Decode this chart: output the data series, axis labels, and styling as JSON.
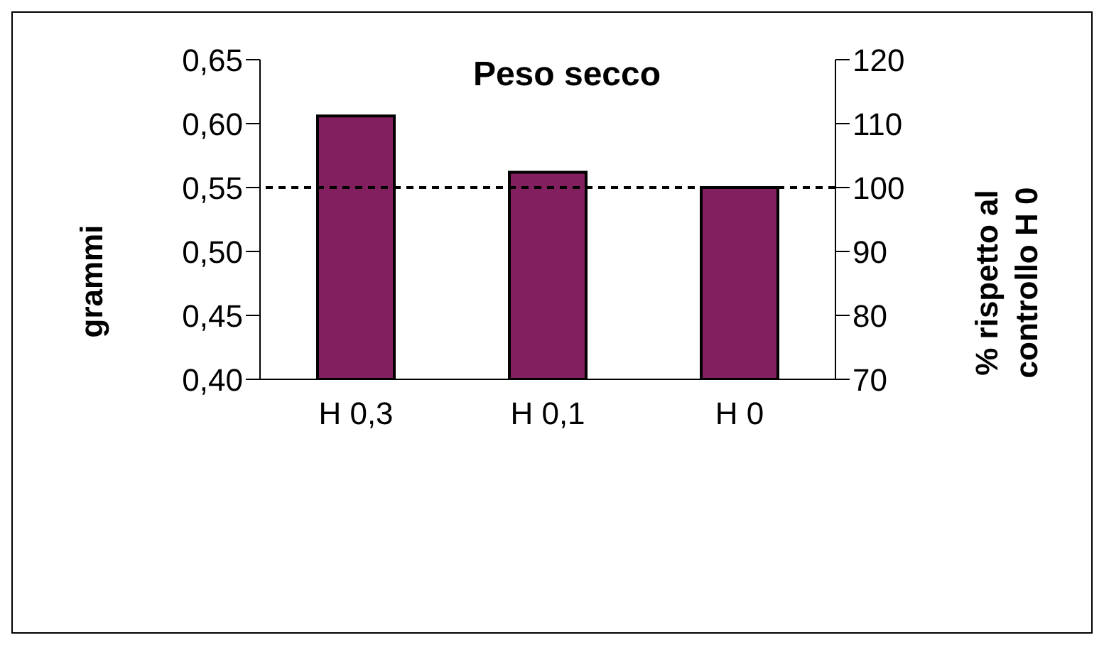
{
  "chart_data": {
    "type": "bar",
    "title": "Peso secco",
    "ylabel": "grammi",
    "y2label": "% rispetto al controllo H 0",
    "categories": [
      "H 0,3",
      "H 0,1",
      "H 0"
    ],
    "series": [
      {
        "color": "#821f5e",
        "values": [
          0.606,
          0.562,
          0.55
        ]
      }
    ],
    "ylim": [
      0.4,
      0.65
    ],
    "yticks": [
      {
        "value": 0.4,
        "label": "0,40"
      },
      {
        "value": 0.45,
        "label": "0,45"
      },
      {
        "value": 0.5,
        "label": "0,50"
      },
      {
        "value": 0.55,
        "label": "0,55"
      },
      {
        "value": 0.6,
        "label": "0,60"
      },
      {
        "value": 0.65,
        "label": "0,65"
      }
    ],
    "y2lim": [
      70,
      120
    ],
    "y2ticks": [
      70,
      80,
      90,
      100,
      110,
      120
    ],
    "ref_lines": [
      {
        "axis": "y2",
        "value": 100,
        "line_style": "dashed",
        "color": "#000000"
      }
    ],
    "grid": false,
    "legend": false
  }
}
